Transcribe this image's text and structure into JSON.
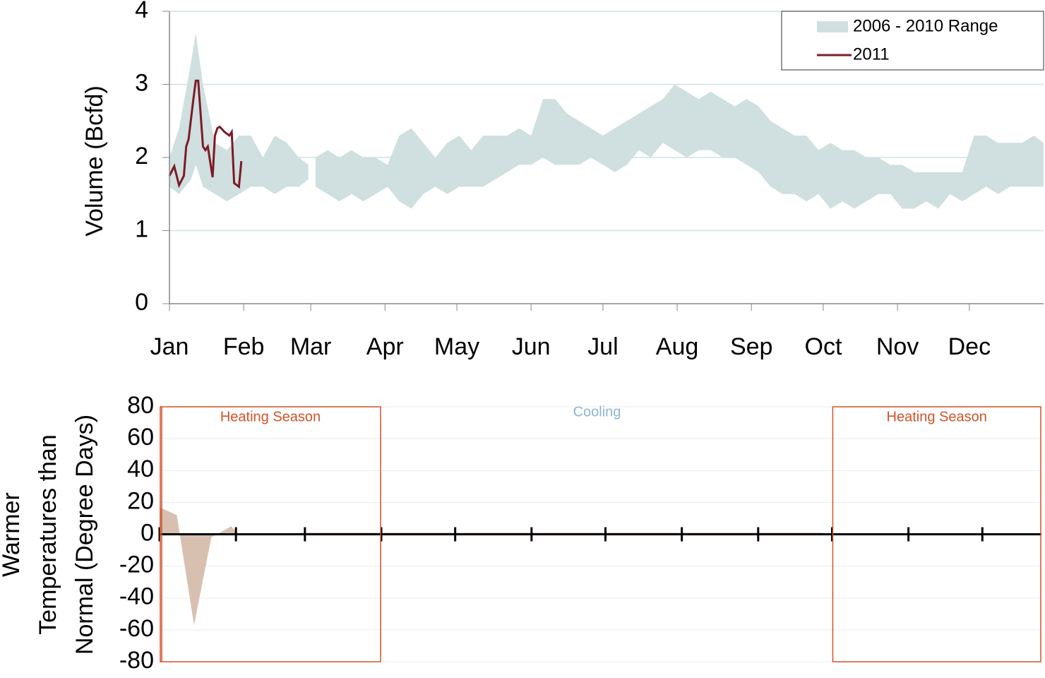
{
  "chart_data": [
    {
      "type": "range_line",
      "ylabel": "Volume (Bcfd)",
      "xlim": [
        1,
        366
      ],
      "xticks": [
        {
          "value": 1,
          "label": "Jan"
        },
        {
          "value": 32,
          "label": "Feb"
        },
        {
          "value": 60,
          "label": "Mar"
        },
        {
          "value": 91,
          "label": "Apr"
        },
        {
          "value": 121,
          "label": "May"
        },
        {
          "value": 152,
          "label": "Jun"
        },
        {
          "value": 182,
          "label": "Jul"
        },
        {
          "value": 213,
          "label": "Aug"
        },
        {
          "value": 244,
          "label": "Sep"
        },
        {
          "value": 274,
          "label": "Oct"
        },
        {
          "value": 305,
          "label": "Nov"
        },
        {
          "value": 335,
          "label": "Dec"
        }
      ],
      "ylim": [
        0,
        4
      ],
      "yticks": [
        0,
        1,
        2,
        3,
        4
      ],
      "grid": true,
      "legend": "top-right",
      "series": [
        {
          "name": "2006 - 2010 Range",
          "color": "#d0dfe0",
          "x": [
            1,
            5,
            10,
            12,
            15,
            20,
            25,
            30,
            35,
            40,
            45,
            50,
            55,
            59,
            60,
            62,
            67,
            72,
            77,
            82,
            87,
            92,
            97,
            102,
            107,
            112,
            117,
            122,
            127,
            132,
            137,
            142,
            147,
            152,
            157,
            162,
            167,
            172,
            177,
            182,
            187,
            192,
            197,
            202,
            207,
            212,
            217,
            222,
            227,
            232,
            237,
            242,
            247,
            252,
            257,
            262,
            267,
            272,
            277,
            282,
            287,
            292,
            297,
            302,
            307,
            312,
            317,
            322,
            327,
            332,
            337,
            342,
            347,
            352,
            357,
            362,
            366
          ],
          "low": [
            1.6,
            1.5,
            1.7,
            1.9,
            1.6,
            1.5,
            1.4,
            1.5,
            1.6,
            1.6,
            1.5,
            1.6,
            1.6,
            1.7,
            null,
            1.6,
            1.5,
            1.4,
            1.5,
            1.4,
            1.5,
            1.6,
            1.4,
            1.3,
            1.5,
            1.6,
            1.5,
            1.6,
            1.6,
            1.6,
            1.7,
            1.8,
            1.9,
            1.9,
            2.0,
            1.9,
            1.9,
            1.9,
            2.0,
            1.9,
            1.8,
            1.9,
            2.1,
            2.0,
            2.2,
            2.1,
            2.0,
            2.1,
            2.1,
            2.0,
            2.0,
            1.9,
            1.8,
            1.6,
            1.5,
            1.5,
            1.4,
            1.5,
            1.3,
            1.4,
            1.3,
            1.4,
            1.5,
            1.5,
            1.3,
            1.3,
            1.4,
            1.3,
            1.5,
            1.4,
            1.5,
            1.6,
            1.5,
            1.6,
            1.6,
            1.6,
            1.6
          ],
          "high": [
            2.0,
            2.4,
            3.3,
            3.7,
            3.0,
            2.2,
            2.1,
            2.3,
            2.3,
            2.0,
            2.3,
            2.2,
            2.0,
            1.9,
            null,
            2.0,
            2.1,
            2.0,
            2.1,
            2.0,
            2.0,
            1.9,
            2.3,
            2.4,
            2.2,
            2.0,
            2.2,
            2.3,
            2.1,
            2.3,
            2.3,
            2.3,
            2.4,
            2.3,
            2.8,
            2.8,
            2.6,
            2.5,
            2.4,
            2.3,
            2.4,
            2.5,
            2.6,
            2.7,
            2.8,
            3.0,
            2.9,
            2.8,
            2.9,
            2.8,
            2.7,
            2.8,
            2.7,
            2.5,
            2.4,
            2.3,
            2.3,
            2.1,
            2.2,
            2.1,
            2.1,
            2.0,
            2.0,
            1.9,
            1.9,
            1.8,
            1.8,
            1.8,
            1.8,
            1.8,
            2.3,
            2.3,
            2.2,
            2.2,
            2.2,
            2.3,
            2.2
          ]
        },
        {
          "name": "2011",
          "color": "#7b1c24",
          "x": [
            1,
            3,
            5,
            7,
            8,
            9,
            11,
            12,
            13,
            15,
            16,
            17,
            19,
            20,
            21,
            22,
            24,
            26,
            27,
            28,
            30,
            31
          ],
          "values": [
            1.75,
            1.88,
            1.62,
            1.75,
            2.15,
            2.25,
            2.8,
            3.05,
            3.05,
            2.15,
            2.1,
            2.15,
            1.73,
            2.3,
            2.4,
            2.42,
            2.35,
            2.3,
            2.35,
            1.65,
            1.6,
            1.95
          ]
        }
      ]
    },
    {
      "type": "area",
      "ylabel_lines": [
        "Warmer",
        "Temperatures than",
        "Normal (Degree Days)"
      ],
      "xlim": [
        1,
        359
      ],
      "xticks": [
        1,
        32,
        60,
        91,
        121,
        152,
        182,
        213,
        244,
        274,
        305,
        335
      ],
      "ylim": [
        -80,
        80
      ],
      "yticks": [
        -80,
        -60,
        -40,
        -20,
        0,
        20,
        40,
        60,
        80
      ],
      "grid": true,
      "color": "#d8c0b0",
      "x": [
        1,
        8,
        15,
        22,
        30,
        33,
        60,
        91,
        120,
        150,
        180,
        210,
        240,
        270,
        274,
        300,
        330,
        359
      ],
      "values": [
        17,
        12,
        -57,
        -2,
        5,
        0,
        1,
        1,
        1,
        1,
        1,
        1,
        1,
        1,
        0,
        0,
        0,
        0
      ],
      "regions": [
        {
          "label": "Heating Season",
          "x": [
            1,
            91
          ]
        },
        {
          "label": "Heating Season",
          "x": [
            274,
            359
          ]
        }
      ],
      "annotation": "Cooling"
    }
  ]
}
